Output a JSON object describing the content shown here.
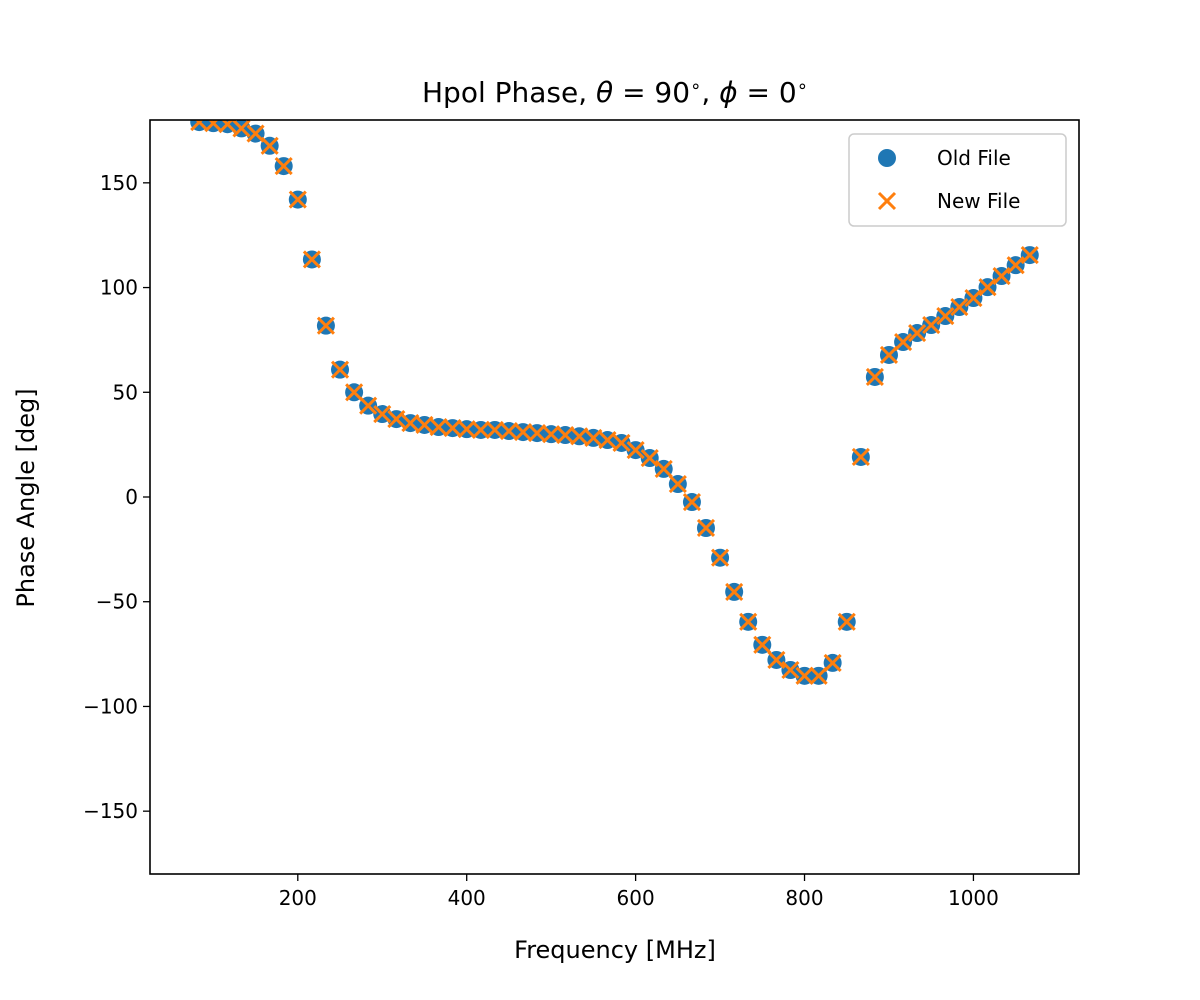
{
  "chart_data": {
    "type": "scatter",
    "title_parts": {
      "prefix": "Hpol Phase, ",
      "theta_sym": "θ",
      "eq1": " = 90",
      "deg1": "∘",
      "sep": ", ",
      "phi_sym": "ϕ",
      "eq2": " = 0",
      "deg2": "∘"
    },
    "title": "Hpol Phase, θ = 90 ∘ , ϕ = 0 ∘",
    "xlabel": "Frequency [MHz]",
    "ylabel": "Phase Angle [deg]",
    "xlim": [
      25,
      1125
    ],
    "ylim": [
      -180,
      180
    ],
    "xticks": [
      200,
      400,
      600,
      800,
      1000
    ],
    "xtick_labels": [
      "200",
      "400",
      "600",
      "800",
      "1000"
    ],
    "yticks": [
      150,
      100,
      50,
      0,
      -50,
      -100,
      -150
    ],
    "ytick_labels": [
      "150",
      "100",
      "50",
      "0",
      "−50",
      "−100",
      "−150"
    ],
    "grid": false,
    "legend": {
      "position": "top-right",
      "entries": [
        "Old File",
        "New File"
      ]
    },
    "colors": {
      "old": "#1f77b4",
      "new": "#ff7f0e"
    },
    "x": [
      83.3,
      100,
      116.7,
      133.3,
      150,
      166.7,
      183.3,
      200,
      216.7,
      233.3,
      250,
      266.7,
      283.3,
      300,
      316.7,
      333.3,
      350,
      366.7,
      383.3,
      400,
      416.7,
      433.3,
      450,
      466.7,
      483.3,
      500,
      516.7,
      533.3,
      550,
      566.7,
      583.3,
      600,
      616.7,
      633.3,
      650,
      666.7,
      683.3,
      700,
      716.7,
      733.3,
      750,
      766.7,
      783.3,
      800,
      816.7,
      833.3,
      850,
      866.7,
      883.3,
      900,
      916.7,
      933.3,
      950,
      966.7,
      983.3,
      1000,
      1016.7,
      1033.3,
      1050,
      1066.7
    ],
    "series": [
      {
        "name": "Old File",
        "marker": "circle",
        "values": [
          179,
          178.5,
          178,
          176,
          173.5,
          167.7,
          158,
          142,
          113.4,
          81.8,
          60.8,
          50,
          43.6,
          39.6,
          37.2,
          35.3,
          34.4,
          33.4,
          32.9,
          32.4,
          32,
          32,
          31.5,
          31,
          30.5,
          30,
          29.6,
          29,
          28.2,
          27.2,
          25.8,
          22.4,
          18.6,
          13.4,
          6.2,
          -2.4,
          -14.8,
          -29,
          -45.3,
          -59.6,
          -70.6,
          -77.8,
          -82.6,
          -85.4,
          -85.4,
          -79.2,
          -59.6,
          19.1,
          57.3,
          67.8,
          74,
          78.3,
          82.1,
          86.4,
          90.7,
          95,
          100.2,
          105.5,
          110.7,
          115.5
        ]
      },
      {
        "name": "New File",
        "marker": "x",
        "values": [
          179,
          178.5,
          178,
          176,
          173.5,
          167.7,
          158,
          142,
          113.4,
          81.8,
          60.8,
          50,
          43.6,
          39.6,
          37.2,
          35.3,
          34.4,
          33.4,
          32.9,
          32.4,
          32,
          32,
          31.5,
          31,
          30.5,
          30,
          29.6,
          29,
          28.2,
          27.2,
          25.8,
          22.4,
          18.6,
          13.4,
          6.2,
          -2.4,
          -14.8,
          -29,
          -45.3,
          -59.6,
          -70.6,
          -77.8,
          -82.6,
          -85.4,
          -85.4,
          -79.2,
          -59.6,
          19.1,
          57.3,
          67.8,
          74,
          78.3,
          82.1,
          86.4,
          90.7,
          95,
          100.2,
          105.5,
          110.7,
          115.5
        ]
      }
    ]
  }
}
